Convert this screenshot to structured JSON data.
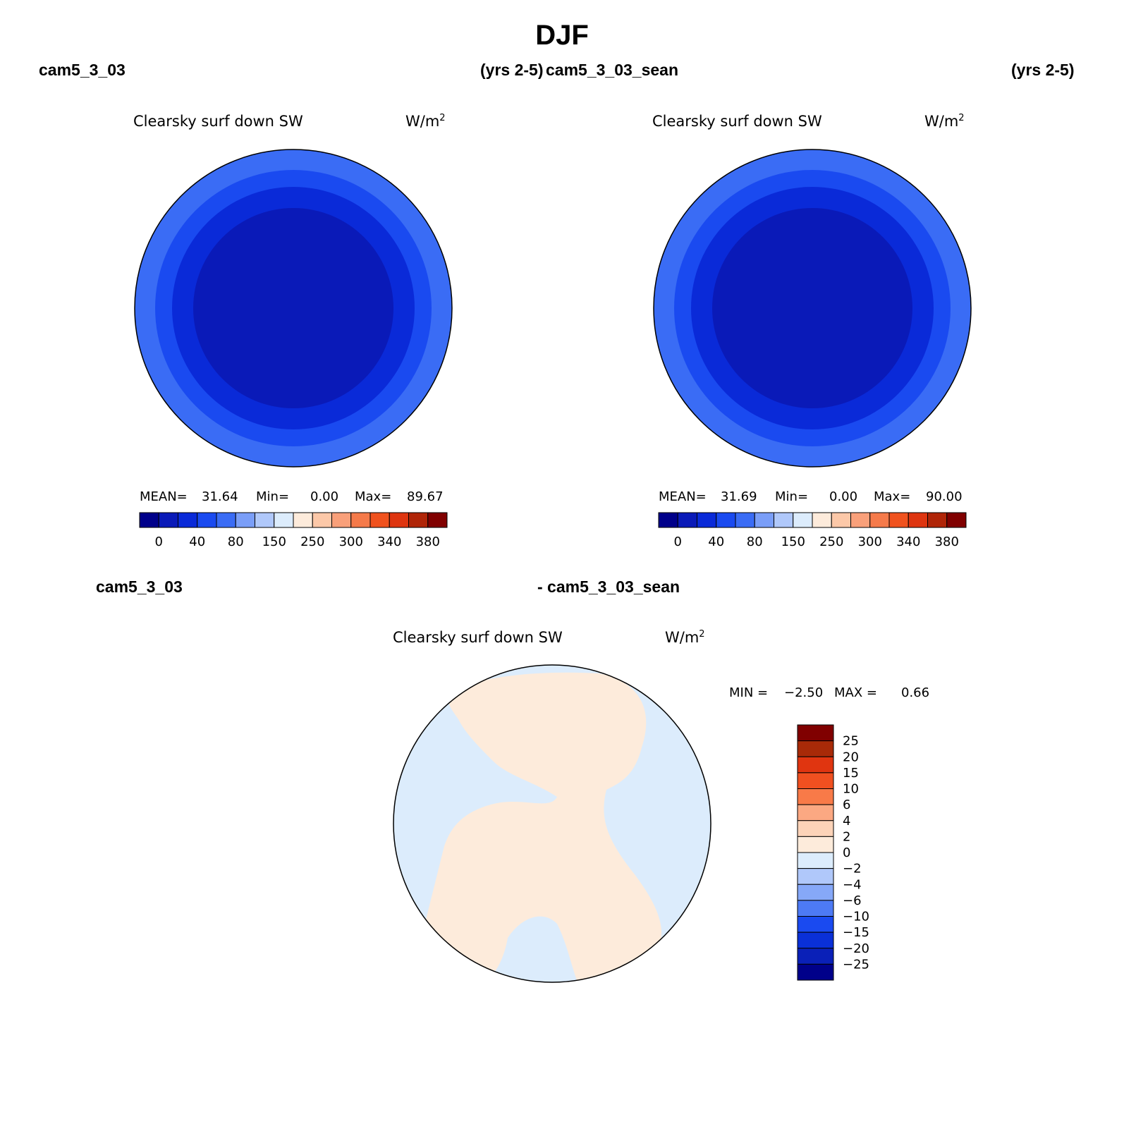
{
  "figure": {
    "title": "DJF",
    "panels": [
      {
        "case": "cam5_3_03",
        "years": "(yrs 2-5)",
        "variable": "Clearsky surf down SW",
        "units": "W/m",
        "units_exp": "2",
        "mean_label": "MEAN=",
        "mean": "31.64",
        "min_label": "Min=",
        "min": "0.00",
        "max_label": "Max=",
        "max": "89.67"
      },
      {
        "case": "cam5_3_03_sean",
        "years": "(yrs 2-5)",
        "variable": "Clearsky surf down SW",
        "units": "W/m",
        "units_exp": "2",
        "mean_label": "MEAN=",
        "mean": "31.69",
        "min_label": "Min=",
        "min": "0.00",
        "max_label": "Max=",
        "max": "90.00"
      }
    ],
    "diff": {
      "case_a": "cam5_3_03",
      "case_b": "- cam5_3_03_sean",
      "variable": "Clearsky surf down SW",
      "units": "W/m",
      "units_exp": "2",
      "min_label": "MIN =",
      "min": "−2.50",
      "max_label": "MAX =",
      "max": "0.66"
    }
  },
  "colorbar_abs": {
    "colors": [
      "#00008a",
      "#0a1ab8",
      "#0a2ad8",
      "#1a4af0",
      "#3a6cf5",
      "#7a9ef8",
      "#b0c8fa",
      "#dcecfc",
      "#fdebdb",
      "#fcc8a8",
      "#f9a07a",
      "#f57a4a",
      "#f0521e",
      "#de3510",
      "#b02508",
      "#800000"
    ],
    "tick_labels": [
      "0",
      "40",
      "80",
      "150",
      "250",
      "300",
      "340",
      "380"
    ]
  },
  "colorbar_diff": {
    "colors": [
      "#800000",
      "#a82a08",
      "#e03510",
      "#f05020",
      "#f87a48",
      "#fba882",
      "#fcd3b8",
      "#fdebdb",
      "#dcecfc",
      "#b0c8fa",
      "#86a8f8",
      "#4d7af5",
      "#1a4af0",
      "#0a30d8",
      "#0a20b8",
      "#00008a"
    ],
    "tick_labels": [
      "25",
      "20",
      "15",
      "10",
      "6",
      "4",
      "2",
      "0",
      "−2",
      "−4",
      "−6",
      "−10",
      "−15",
      "−20",
      "−25"
    ]
  },
  "map_colors": {
    "abs_rings": [
      "#3a6cf5",
      "#1a4af0",
      "#0a2ad8",
      "#0a1ab8"
    ],
    "diff_land": "#fdebdb",
    "diff_sea": "#dcecfc"
  }
}
